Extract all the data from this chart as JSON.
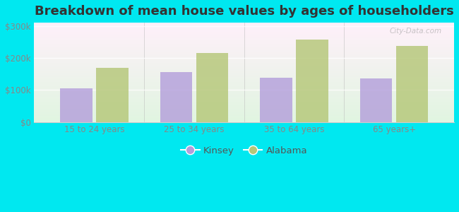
{
  "title": "Breakdown of mean house values by ages of householders",
  "categories": [
    "15 to 24 years",
    "25 to 34 years",
    "35 to 64 years",
    "65 years+"
  ],
  "kinsey_values": [
    105000,
    155000,
    138000,
    137000
  ],
  "alabama_values": [
    168000,
    215000,
    258000,
    238000
  ],
  "kinsey_color": "#b39ddb",
  "alabama_color": "#b5c778",
  "background_color": "#00e8f0",
  "ylabel_ticks": [
    0,
    100000,
    200000,
    300000
  ],
  "ylabel_labels": [
    "$0",
    "$100k",
    "$200k",
    "$300k"
  ],
  "ylim": [
    0,
    310000
  ],
  "legend_labels": [
    "Kinsey",
    "Alabama"
  ],
  "title_fontsize": 13,
  "tick_fontsize": 8.5,
  "legend_fontsize": 9.5,
  "bar_width": 0.32,
  "watermark": "City-Data.com"
}
